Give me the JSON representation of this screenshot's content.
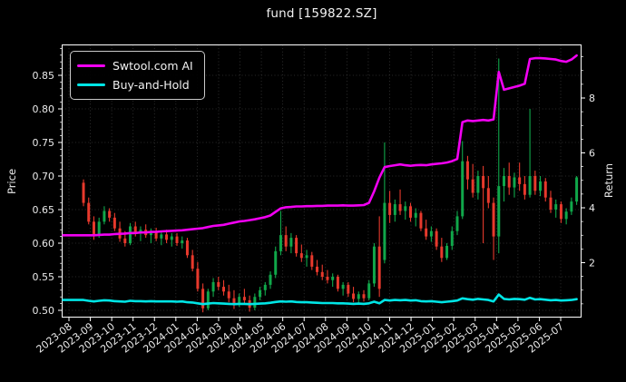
{
  "window": {
    "title": "fund [159822.SZ]"
  },
  "legend": {
    "entries": [
      {
        "label": "Swtool.com AI",
        "color": "#f101f1"
      },
      {
        "label": "Buy-and-Hold",
        "color": "#00e5e5"
      }
    ]
  },
  "chart_data": {
    "type": "candlestick",
    "title": "fund [159822.SZ]",
    "ylabel_left": "Price",
    "ylabel_right": "Return",
    "grid": true,
    "legend_position": "upper-left",
    "x_tick_labels": [
      "2023-08",
      "2023-09",
      "2023-10",
      "2023-11",
      "2023-12",
      "2024-01",
      "2024-02",
      "2024-03",
      "2024-04",
      "2024-05",
      "2024-06",
      "2024-07",
      "2024-08",
      "2024-09",
      "2024-10",
      "2024-11",
      "2024-12",
      "2025-01",
      "2025-02",
      "2025-03",
      "2025-04",
      "2025-05",
      "2025-06",
      "2025-07"
    ],
    "price_ticks": [
      0.5,
      0.55,
      0.6,
      0.65,
      0.7,
      0.75,
      0.8,
      0.85
    ],
    "return_ticks": [
      2,
      4,
      6,
      8
    ],
    "price_axis_range": [
      0.4905,
      0.896
    ],
    "return_axis_range": [
      0.03,
      9.95
    ],
    "colors": {
      "background": "#000000",
      "up": "#10a74a",
      "down": "#e8392c",
      "ai_line": "#f101f1",
      "buy_hold_line": "#00e5e5",
      "grid": "#3a3a3a",
      "spine": "#ffffff",
      "text": "#eaeaea"
    },
    "time_unit": "months after 2023-08 tick; candles weekly, t = t_start + i*t_step",
    "t_start": 0.68,
    "t_step": 0.2428,
    "candles_ohlc": [
      [
        0.69,
        0.695,
        0.655,
        0.66
      ],
      [
        0.66,
        0.668,
        0.628,
        0.632
      ],
      [
        0.632,
        0.64,
        0.605,
        0.612
      ],
      [
        0.612,
        0.638,
        0.608,
        0.632
      ],
      [
        0.632,
        0.655,
        0.628,
        0.648
      ],
      [
        0.648,
        0.652,
        0.632,
        0.638
      ],
      [
        0.638,
        0.645,
        0.618,
        0.622
      ],
      [
        0.622,
        0.632,
        0.602,
        0.607
      ],
      [
        0.607,
        0.618,
        0.595,
        0.6
      ],
      [
        0.6,
        0.63,
        0.597,
        0.625
      ],
      [
        0.625,
        0.632,
        0.61,
        0.615
      ],
      [
        0.615,
        0.625,
        0.603,
        0.62
      ],
      [
        0.62,
        0.628,
        0.608,
        0.612
      ],
      [
        0.612,
        0.622,
        0.6,
        0.617
      ],
      [
        0.617,
        0.623,
        0.603,
        0.607
      ],
      [
        0.607,
        0.618,
        0.597,
        0.613
      ],
      [
        0.613,
        0.62,
        0.6,
        0.605
      ],
      [
        0.605,
        0.615,
        0.595,
        0.61
      ],
      [
        0.61,
        0.615,
        0.596,
        0.6
      ],
      [
        0.6,
        0.61,
        0.592,
        0.604
      ],
      [
        0.604,
        0.608,
        0.578,
        0.582
      ],
      [
        0.582,
        0.59,
        0.558,
        0.562
      ],
      [
        0.562,
        0.572,
        0.528,
        0.532
      ],
      [
        0.532,
        0.54,
        0.497,
        0.503
      ],
      [
        0.503,
        0.532,
        0.5,
        0.528
      ],
      [
        0.528,
        0.548,
        0.52,
        0.542
      ],
      [
        0.542,
        0.55,
        0.53,
        0.535
      ],
      [
        0.535,
        0.545,
        0.522,
        0.528
      ],
      [
        0.528,
        0.538,
        0.512,
        0.518
      ],
      [
        0.518,
        0.53,
        0.502,
        0.508
      ],
      [
        0.508,
        0.525,
        0.505,
        0.52
      ],
      [
        0.52,
        0.532,
        0.51,
        0.515
      ],
      [
        0.515,
        0.522,
        0.498,
        0.504
      ],
      [
        0.504,
        0.525,
        0.5,
        0.52
      ],
      [
        0.52,
        0.535,
        0.515,
        0.53
      ],
      [
        0.53,
        0.542,
        0.522,
        0.538
      ],
      [
        0.538,
        0.558,
        0.532,
        0.553
      ],
      [
        0.553,
        0.595,
        0.548,
        0.588
      ],
      [
        0.588,
        0.648,
        0.582,
        0.612
      ],
      [
        0.612,
        0.625,
        0.588,
        0.595
      ],
      [
        0.595,
        0.615,
        0.585,
        0.608
      ],
      [
        0.608,
        0.612,
        0.58,
        0.585
      ],
      [
        0.585,
        0.598,
        0.572,
        0.578
      ],
      [
        0.578,
        0.59,
        0.565,
        0.582
      ],
      [
        0.582,
        0.587,
        0.56,
        0.565
      ],
      [
        0.565,
        0.575,
        0.552,
        0.557
      ],
      [
        0.557,
        0.568,
        0.545,
        0.55
      ],
      [
        0.55,
        0.56,
        0.54,
        0.545
      ],
      [
        0.545,
        0.555,
        0.535,
        0.55
      ],
      [
        0.55,
        0.553,
        0.528,
        0.532
      ],
      [
        0.532,
        0.542,
        0.522,
        0.538
      ],
      [
        0.538,
        0.542,
        0.52,
        0.525
      ],
      [
        0.525,
        0.535,
        0.512,
        0.517
      ],
      [
        0.517,
        0.528,
        0.51,
        0.524
      ],
      [
        0.524,
        0.53,
        0.513,
        0.518
      ],
      [
        0.518,
        0.545,
        0.515,
        0.54
      ],
      [
        0.54,
        0.6,
        0.535,
        0.595
      ],
      [
        0.595,
        0.64,
        0.52,
        0.532
      ],
      [
        0.575,
        0.75,
        0.57,
        0.66
      ],
      [
        0.66,
        0.678,
        0.63,
        0.642
      ],
      [
        0.642,
        0.665,
        0.632,
        0.658
      ],
      [
        0.658,
        0.68,
        0.642,
        0.648
      ],
      [
        0.648,
        0.662,
        0.635,
        0.655
      ],
      [
        0.655,
        0.66,
        0.632,
        0.638
      ],
      [
        0.638,
        0.652,
        0.625,
        0.645
      ],
      [
        0.645,
        0.648,
        0.618,
        0.622
      ],
      [
        0.622,
        0.635,
        0.605,
        0.61
      ],
      [
        0.61,
        0.625,
        0.602,
        0.618
      ],
      [
        0.618,
        0.622,
        0.59,
        0.595
      ],
      [
        0.595,
        0.608,
        0.572,
        0.578
      ],
      [
        0.578,
        0.6,
        0.575,
        0.596
      ],
      [
        0.596,
        0.625,
        0.59,
        0.618
      ],
      [
        0.618,
        0.648,
        0.612,
        0.64
      ],
      [
        0.64,
        0.752,
        0.636,
        0.722
      ],
      [
        0.722,
        0.73,
        0.68,
        0.695
      ],
      [
        0.695,
        0.718,
        0.668,
        0.675
      ],
      [
        0.675,
        0.708,
        0.665,
        0.7
      ],
      [
        0.7,
        0.715,
        0.6,
        0.682
      ],
      [
        0.682,
        0.7,
        0.652,
        0.66
      ],
      [
        0.66,
        0.668,
        0.575,
        0.61
      ],
      [
        0.61,
        0.875,
        0.585,
        0.685
      ],
      [
        0.685,
        0.712,
        0.662,
        0.7
      ],
      [
        0.7,
        0.72,
        0.672,
        0.683
      ],
      [
        0.683,
        0.705,
        0.668,
        0.698
      ],
      [
        0.698,
        0.72,
        0.678,
        0.688
      ],
      [
        0.688,
        0.7,
        0.665,
        0.672
      ],
      [
        0.672,
        0.8,
        0.668,
        0.7
      ],
      [
        0.7,
        0.708,
        0.672,
        0.678
      ],
      [
        0.678,
        0.7,
        0.67,
        0.692
      ],
      [
        0.692,
        0.697,
        0.662,
        0.668
      ],
      [
        0.668,
        0.678,
        0.645,
        0.65
      ],
      [
        0.65,
        0.665,
        0.638,
        0.658
      ],
      [
        0.658,
        0.662,
        0.63,
        0.636
      ],
      [
        0.636,
        0.652,
        0.628,
        0.647
      ],
      [
        0.647,
        0.668,
        0.642,
        0.662
      ],
      [
        0.662,
        0.7,
        0.657,
        0.698
      ]
    ],
    "series": [
      {
        "name": "Swtool.com AI",
        "axis": "right",
        "color": "#f101f1",
        "values": [
          3.0,
          3.0,
          3.0,
          3.01,
          3.02,
          3.02,
          3.04,
          3.05,
          3.06,
          3.08,
          3.08,
          3.1,
          3.1,
          3.12,
          3.12,
          3.14,
          3.15,
          3.16,
          3.17,
          3.18,
          3.2,
          3.22,
          3.24,
          3.26,
          3.3,
          3.34,
          3.36,
          3.38,
          3.42,
          3.46,
          3.5,
          3.52,
          3.55,
          3.58,
          3.62,
          3.66,
          3.72,
          3.85,
          3.98,
          4.02,
          4.03,
          4.05,
          4.05,
          4.06,
          4.06,
          4.07,
          4.07,
          4.08,
          4.08,
          4.08,
          4.09,
          4.08,
          4.08,
          4.09,
          4.1,
          4.18,
          4.6,
          5.1,
          5.48,
          5.52,
          5.55,
          5.58,
          5.55,
          5.53,
          5.55,
          5.56,
          5.55,
          5.58,
          5.6,
          5.62,
          5.65,
          5.7,
          5.78,
          7.12,
          7.18,
          7.16,
          7.18,
          7.2,
          7.18,
          7.22,
          8.95,
          8.3,
          8.35,
          8.4,
          8.45,
          8.52,
          9.42,
          9.45,
          9.45,
          9.44,
          9.42,
          9.4,
          9.35,
          9.32,
          9.4,
          9.55
        ]
      },
      {
        "name": "Buy-and-Hold",
        "axis": "right",
        "color": "#00e5e5",
        "values": [
          0.64,
          0.61,
          0.59,
          0.61,
          0.63,
          0.62,
          0.6,
          0.59,
          0.58,
          0.61,
          0.6,
          0.6,
          0.59,
          0.6,
          0.59,
          0.59,
          0.59,
          0.59,
          0.58,
          0.59,
          0.56,
          0.55,
          0.52,
          0.49,
          0.51,
          0.53,
          0.52,
          0.51,
          0.5,
          0.49,
          0.5,
          0.5,
          0.49,
          0.5,
          0.51,
          0.52,
          0.54,
          0.57,
          0.59,
          0.58,
          0.59,
          0.57,
          0.56,
          0.56,
          0.55,
          0.54,
          0.53,
          0.53,
          0.53,
          0.52,
          0.52,
          0.51,
          0.5,
          0.51,
          0.5,
          0.52,
          0.58,
          0.52,
          0.64,
          0.62,
          0.64,
          0.63,
          0.64,
          0.62,
          0.63,
          0.6,
          0.59,
          0.6,
          0.58,
          0.56,
          0.58,
          0.6,
          0.62,
          0.7,
          0.67,
          0.65,
          0.68,
          0.66,
          0.64,
          0.59,
          0.84,
          0.68,
          0.66,
          0.68,
          0.67,
          0.65,
          0.72,
          0.66,
          0.67,
          0.65,
          0.63,
          0.64,
          0.62,
          0.63,
          0.64,
          0.67
        ]
      }
    ]
  }
}
